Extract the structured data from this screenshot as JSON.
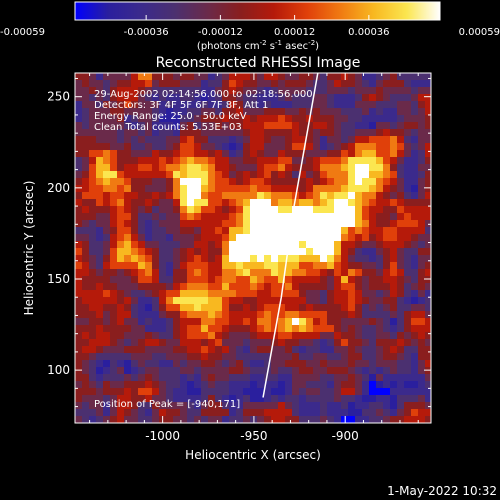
{
  "colors": {
    "background": "#000000",
    "foreground": "#ffffff",
    "limb": "#ffffff",
    "colormap": [
      "#0000ff",
      "#2a1f9e",
      "#3b2a8c",
      "#4b3070",
      "#6a2a4a",
      "#8a1e1e",
      "#b51a0a",
      "#e0400a",
      "#f07a12",
      "#f8b820",
      "#fbe650",
      "#ffffff"
    ]
  },
  "colorbar": {
    "ticks": [
      "-0.00059",
      "-0.00036",
      "-0.00012",
      "0.00012",
      "0.00036",
      "0.00059"
    ],
    "unit_prefix": "(photons cm",
    "unit_exp1": "-2",
    "unit_mid": " s",
    "unit_exp2": "-1",
    "unit_mid2": " asec",
    "unit_exp3": "-2",
    "unit_suffix": ")"
  },
  "chart_data": {
    "type": "heatmap",
    "title": "Reconstructed RHESSI Image",
    "xlabel": "Heliocentric X (arcsec)",
    "ylabel": "Heliocentric Y (arcsec)",
    "xlim": [
      -1048,
      -853
    ],
    "ylim": [
      71,
      263
    ],
    "xticks": [
      -1000,
      -950,
      -900
    ],
    "xtick_labels": [
      "-1000",
      "-950",
      "-900"
    ],
    "yticks": [
      100,
      150,
      200,
      250
    ],
    "ytick_labels": [
      "100",
      "150",
      "200",
      "250"
    ],
    "zlim": [
      -0.00059,
      0.00059
    ],
    "peak": [
      -940,
      171
    ],
    "limb_points": [
      [
        -945,
        85
      ],
      [
        -935,
        140
      ],
      [
        -928,
        190
      ],
      [
        -915,
        263
      ]
    ],
    "annotations": [
      "29-Aug-2002 02:14:56.000 to 02:18:56.000",
      "Detectors: 3F 4F 5F 6F 7F 8F, Att 1",
      "Energy Range: 25.0 - 50.0 keV",
      "Clean     Total counts: 5.53E+03",
      "Position of Peak = [-940,171]"
    ]
  },
  "timestamp": "1-May-2022 10:32"
}
